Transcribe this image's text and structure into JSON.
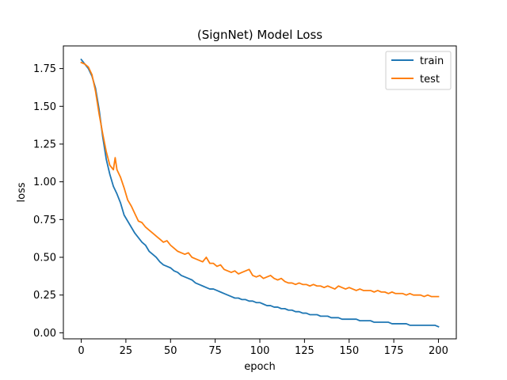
{
  "chart_data": {
    "type": "line",
    "title": "(SignNet) Model Loss",
    "xlabel": "epoch",
    "ylabel": "loss",
    "xlim": [
      -10,
      210
    ],
    "ylim": [
      -0.04,
      1.9
    ],
    "xticks": [
      0,
      25,
      50,
      75,
      100,
      125,
      150,
      175,
      200
    ],
    "xtick_labels": [
      "0",
      "25",
      "50",
      "75",
      "100",
      "125",
      "150",
      "175",
      "200"
    ],
    "yticks": [
      0.0,
      0.25,
      0.5,
      0.75,
      1.0,
      1.25,
      1.5,
      1.75
    ],
    "ytick_labels": [
      "0.00",
      "0.25",
      "0.50",
      "0.75",
      "1.00",
      "1.25",
      "1.50",
      "1.75"
    ],
    "grid": false,
    "legend_position": "upper right",
    "series": [
      {
        "name": "train",
        "color": "#1f77b4",
        "x": [
          0,
          2,
          4,
          6,
          8,
          10,
          12,
          14,
          16,
          18,
          20,
          22,
          24,
          26,
          28,
          30,
          32,
          34,
          36,
          38,
          40,
          42,
          44,
          46,
          48,
          50,
          52,
          54,
          56,
          58,
          60,
          62,
          64,
          66,
          68,
          70,
          72,
          74,
          76,
          78,
          80,
          82,
          84,
          86,
          88,
          90,
          92,
          94,
          96,
          98,
          100,
          102,
          104,
          106,
          108,
          110,
          112,
          114,
          116,
          118,
          120,
          122,
          124,
          126,
          128,
          130,
          132,
          134,
          136,
          138,
          140,
          142,
          144,
          146,
          148,
          150,
          152,
          154,
          156,
          158,
          160,
          162,
          164,
          166,
          168,
          170,
          172,
          174,
          176,
          178,
          180,
          182,
          184,
          186,
          188,
          190,
          192,
          194,
          196,
          198,
          200
        ],
        "values": [
          1.81,
          1.78,
          1.75,
          1.7,
          1.62,
          1.48,
          1.3,
          1.15,
          1.05,
          0.97,
          0.92,
          0.86,
          0.78,
          0.74,
          0.7,
          0.66,
          0.63,
          0.6,
          0.58,
          0.54,
          0.52,
          0.5,
          0.47,
          0.45,
          0.44,
          0.43,
          0.41,
          0.4,
          0.38,
          0.37,
          0.36,
          0.35,
          0.33,
          0.32,
          0.31,
          0.3,
          0.29,
          0.29,
          0.28,
          0.27,
          0.26,
          0.25,
          0.24,
          0.23,
          0.23,
          0.22,
          0.22,
          0.21,
          0.21,
          0.2,
          0.2,
          0.19,
          0.18,
          0.18,
          0.17,
          0.17,
          0.16,
          0.16,
          0.15,
          0.15,
          0.14,
          0.14,
          0.13,
          0.13,
          0.12,
          0.12,
          0.12,
          0.11,
          0.11,
          0.11,
          0.1,
          0.1,
          0.1,
          0.09,
          0.09,
          0.09,
          0.09,
          0.09,
          0.08,
          0.08,
          0.08,
          0.08,
          0.07,
          0.07,
          0.07,
          0.07,
          0.07,
          0.06,
          0.06,
          0.06,
          0.06,
          0.06,
          0.05,
          0.05,
          0.05,
          0.05,
          0.05,
          0.05,
          0.05,
          0.05,
          0.04
        ]
      },
      {
        "name": "test",
        "color": "#ff7f0e",
        "x": [
          0,
          2,
          4,
          6,
          8,
          10,
          12,
          14,
          16,
          18,
          19,
          20,
          22,
          24,
          26,
          28,
          30,
          32,
          34,
          36,
          38,
          40,
          42,
          44,
          46,
          48,
          50,
          52,
          54,
          56,
          58,
          60,
          62,
          64,
          66,
          68,
          70,
          72,
          74,
          76,
          78,
          80,
          82,
          84,
          86,
          88,
          90,
          92,
          94,
          96,
          98,
          100,
          102,
          104,
          106,
          108,
          110,
          112,
          114,
          116,
          118,
          120,
          122,
          124,
          126,
          128,
          130,
          132,
          134,
          136,
          138,
          140,
          142,
          144,
          146,
          148,
          150,
          152,
          154,
          156,
          158,
          160,
          162,
          164,
          166,
          168,
          170,
          172,
          174,
          176,
          178,
          180,
          182,
          184,
          186,
          188,
          190,
          192,
          194,
          196,
          198,
          200
        ],
        "values": [
          1.79,
          1.78,
          1.76,
          1.71,
          1.6,
          1.45,
          1.32,
          1.2,
          1.11,
          1.08,
          1.16,
          1.08,
          1.03,
          0.96,
          0.88,
          0.84,
          0.79,
          0.74,
          0.73,
          0.7,
          0.68,
          0.66,
          0.64,
          0.62,
          0.6,
          0.61,
          0.58,
          0.56,
          0.54,
          0.53,
          0.52,
          0.53,
          0.5,
          0.49,
          0.48,
          0.47,
          0.5,
          0.46,
          0.46,
          0.44,
          0.45,
          0.42,
          0.41,
          0.4,
          0.41,
          0.39,
          0.4,
          0.41,
          0.42,
          0.38,
          0.37,
          0.38,
          0.36,
          0.37,
          0.38,
          0.36,
          0.35,
          0.36,
          0.34,
          0.33,
          0.33,
          0.32,
          0.33,
          0.32,
          0.32,
          0.31,
          0.32,
          0.31,
          0.31,
          0.3,
          0.31,
          0.3,
          0.29,
          0.31,
          0.3,
          0.29,
          0.3,
          0.29,
          0.28,
          0.29,
          0.28,
          0.28,
          0.28,
          0.27,
          0.28,
          0.27,
          0.27,
          0.26,
          0.27,
          0.26,
          0.26,
          0.26,
          0.25,
          0.26,
          0.25,
          0.25,
          0.25,
          0.24,
          0.25,
          0.24,
          0.24,
          0.24
        ]
      }
    ]
  }
}
